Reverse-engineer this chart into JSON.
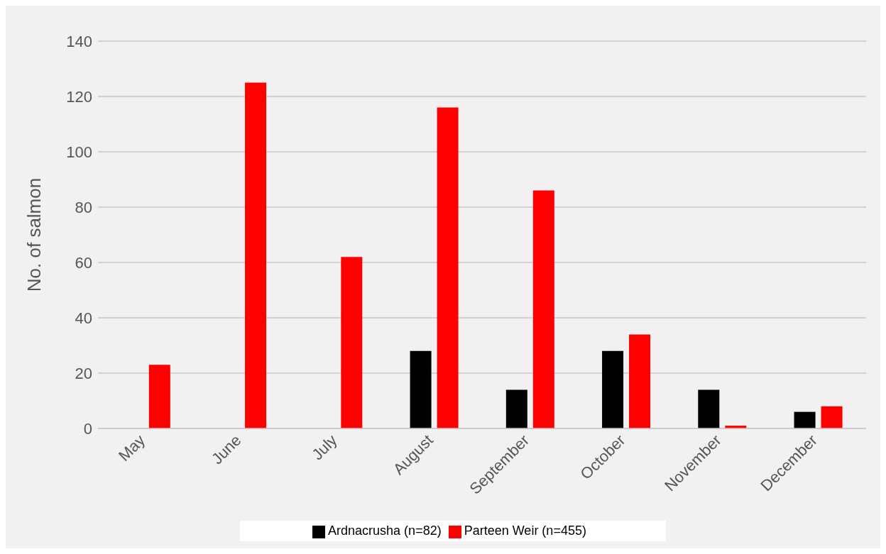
{
  "chart_data": {
    "type": "bar",
    "ylabel": "No. of salmon",
    "categories": [
      "May",
      "June",
      "July",
      "August",
      "September",
      "October",
      "November",
      "December"
    ],
    "series": [
      {
        "name": "Ardnacrusha (n=82)",
        "color": "#000000",
        "values": [
          0,
          0,
          0,
          28,
          14,
          28,
          14,
          6
        ]
      },
      {
        "name": "Parteen Weir (n=455)",
        "color": "#ff0000",
        "values": [
          23,
          125,
          62,
          116,
          86,
          34,
          1,
          8
        ]
      }
    ],
    "ylim": [
      0,
      140
    ],
    "yticks": [
      0,
      20,
      40,
      60,
      80,
      100,
      120,
      140
    ],
    "grid": "y",
    "legend": "bottom"
  }
}
